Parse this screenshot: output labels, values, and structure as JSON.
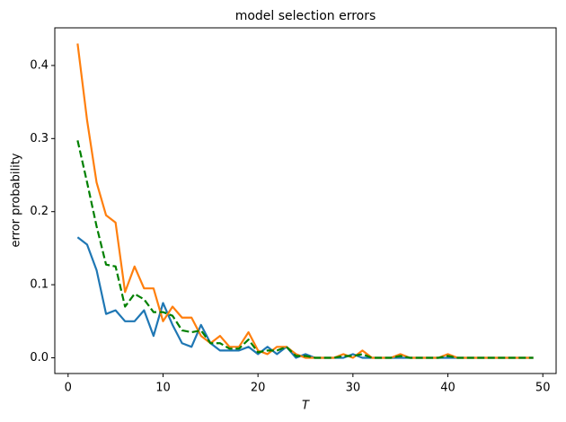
{
  "chart_data": {
    "type": "line",
    "title": "model selection errors",
    "x_label": "T",
    "y_label": "error probability",
    "x": [
      1,
      2,
      3,
      4,
      5,
      6,
      7,
      8,
      9,
      10,
      11,
      12,
      13,
      14,
      15,
      16,
      17,
      18,
      19,
      20,
      21,
      22,
      23,
      24,
      25,
      26,
      27,
      28,
      29,
      30,
      31,
      32,
      33,
      34,
      35,
      36,
      37,
      38,
      39,
      40,
      41,
      42,
      43,
      44,
      45,
      46,
      47,
      48,
      49
    ],
    "series": [
      {
        "color": "#1f77b4",
        "dash": "solid",
        "values": [
          0.165,
          0.155,
          0.12,
          0.06,
          0.065,
          0.05,
          0.05,
          0.065,
          0.03,
          0.075,
          0.045,
          0.02,
          0.015,
          0.045,
          0.02,
          0.01,
          0.01,
          0.01,
          0.015,
          0.005,
          0.015,
          0.005,
          0.015,
          0,
          0.005,
          0,
          0,
          0,
          0,
          0.005,
          0,
          0,
          0,
          0,
          0,
          0,
          0,
          0,
          0,
          0,
          0,
          0,
          0,
          0,
          0,
          0,
          0,
          0,
          0
        ]
      },
      {
        "color": "#ff7f0e",
        "dash": "solid",
        "values": [
          0.43,
          0.325,
          0.24,
          0.195,
          0.185,
          0.09,
          0.125,
          0.095,
          0.095,
          0.05,
          0.07,
          0.055,
          0.055,
          0.03,
          0.02,
          0.03,
          0.015,
          0.015,
          0.035,
          0.01,
          0.005,
          0.015,
          0.015,
          0.005,
          0,
          0,
          0,
          0,
          0.005,
          0,
          0.01,
          0,
          0,
          0,
          0.005,
          0,
          0,
          0,
          0,
          0.005,
          0,
          0,
          0,
          0,
          0,
          0,
          0,
          0,
          0
        ]
      },
      {
        "color": "#008000",
        "dash": "dashed",
        "values": [
          0.2975,
          0.24,
          0.18,
          0.1275,
          0.125,
          0.07,
          0.0875,
          0.08,
          0.0625,
          0.0625,
          0.0575,
          0.0375,
          0.035,
          0.0375,
          0.02,
          0.02,
          0.0125,
          0.0125,
          0.025,
          0.0075,
          0.01,
          0.01,
          0.015,
          0.0025,
          0.0025,
          0,
          0,
          0,
          0.0025,
          0.0025,
          0.005,
          0,
          0,
          0,
          0.0025,
          0,
          0,
          0,
          0,
          0.0025,
          0,
          0,
          0,
          0,
          0,
          0,
          0,
          0,
          0
        ]
      }
    ],
    "xlim": [
      -1.4,
      51.4
    ],
    "xticks": [
      0,
      10,
      20,
      30,
      40,
      50
    ],
    "ylim": [
      -0.0215,
      0.4515
    ],
    "yticks": [
      {
        "value": 0,
        "label": "0.0"
      },
      0.1,
      0.2,
      0.3,
      0.4
    ],
    "grid": false
  }
}
